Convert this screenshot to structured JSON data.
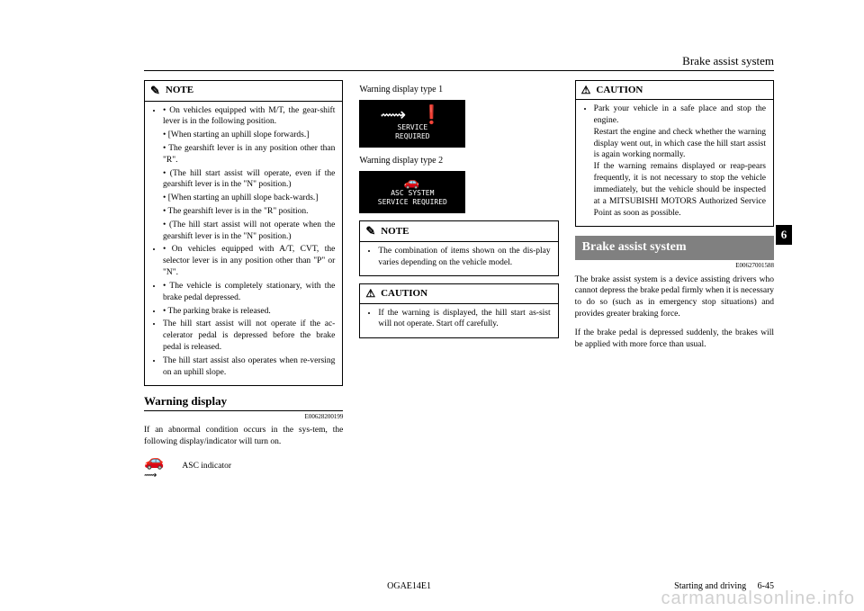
{
  "header": {
    "title": "Brake assist system"
  },
  "side_tab": "6",
  "col1": {
    "note": {
      "title": "NOTE",
      "bullets_top": [
        "On vehicles equipped with M/T, the gear-shift lever is in the following position.",
        "[When starting an uphill slope forwards.]",
        "The gearshift lever is in any position other than \"R\".",
        "(The hill start assist will operate, even if the gearshift lever is in the \"N\" position.)",
        "[When starting an uphill slope back-wards.]",
        "The gearshift lever is in the \"R\" position.",
        "(The hill start assist will not operate when the gearshift lever is in the \"N\" position.)",
        "On vehicles equipped with A/T, CVT, the selector lever is in any position other than \"P\" or \"N\".",
        "The vehicle is completely stationary, with the brake pedal depressed.",
        "The parking brake is released."
      ],
      "bullets_main": [
        "The hill start assist will not operate if the ac-celerator pedal is depressed before the brake pedal is released.",
        "The hill start assist also operates when re-versing on an uphill slope."
      ]
    },
    "warning_heading": "Warning display",
    "warning_code": "E00628200199",
    "warning_body": "If an abnormal condition occurs in the sys-tem, the following display/indicator will turn on.",
    "asc_label": "ASC indicator"
  },
  "col2": {
    "type1_label": "Warning display type 1",
    "type1_img": {
      "line1": "SERVICE",
      "line2": "REQUIRED"
    },
    "type2_label": "Warning display type 2",
    "type2_img": {
      "line1": "ASC SYSTEM",
      "line2": "SERVICE REQUIRED"
    },
    "note": {
      "title": "NOTE",
      "bullet": "The combination of items shown on the dis-play varies depending on the vehicle model."
    },
    "caution": {
      "title": "CAUTION",
      "bullet": "If the warning is displayed, the hill start as-sist will not operate. Start off carefully."
    }
  },
  "col3": {
    "caution": {
      "title": "CAUTION",
      "bullet": "Park your vehicle in a safe place and stop the engine.\nRestart the engine and check whether the warning display went out, in which case the hill start assist is again working normally.\nIf the warning remains displayed or reap-pears frequently, it is not necessary to stop the vehicle immediately, but the vehicle should be inspected at a MITSUBISHI MOTORS Authorized Service Point as soon as possible."
    },
    "brake_heading": "Brake assist system",
    "brake_code": "E00627001588",
    "brake_p1": "The brake assist system is a device assisting drivers who cannot depress the brake pedal firmly when it is necessary to do so (such as in emergency stop situations) and provides greater braking force.",
    "brake_p2": "If the brake pedal is depressed suddenly, the brakes will be applied with more force than usual."
  },
  "footer": {
    "center": "OGAE14E1",
    "right_label": "Starting and driving",
    "right_page": "6-45"
  },
  "watermark": "carmanualsonline.info"
}
